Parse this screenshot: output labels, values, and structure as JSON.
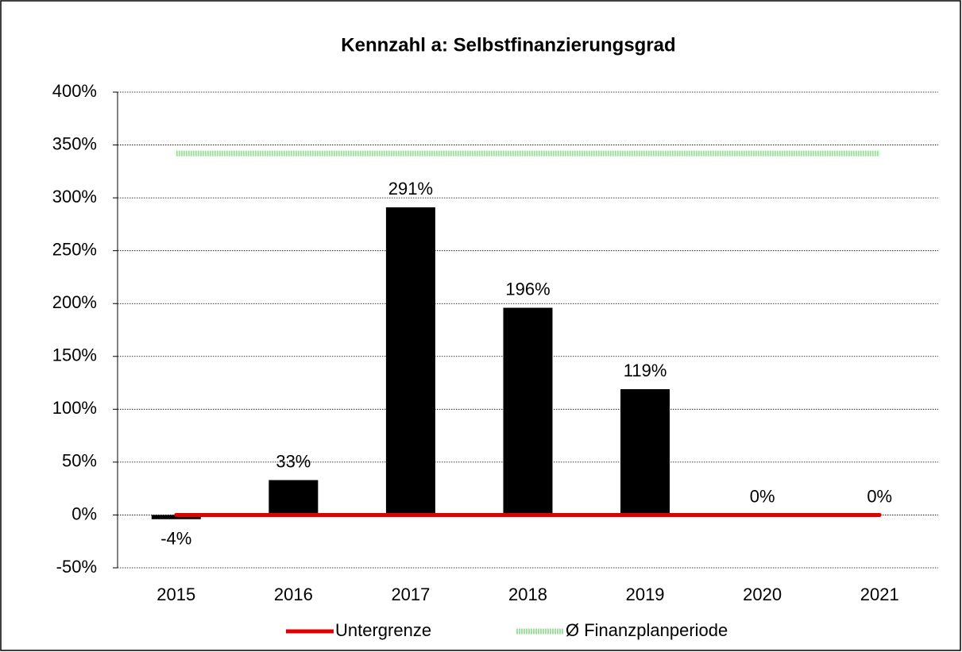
{
  "chart_data": {
    "type": "bar",
    "title": "Kennzahl a: Selbstfinanzierungsgrad",
    "categories": [
      "2015",
      "2016",
      "2017",
      "2018",
      "2019",
      "2020",
      "2021"
    ],
    "series": [
      {
        "type": "bar",
        "color": "#000000",
        "values": [
          -4,
          33,
          291,
          196,
          119,
          0,
          0
        ],
        "value_labels": [
          "-4%",
          "33%",
          "291%",
          "196%",
          "119%",
          "0%",
          "0%"
        ]
      },
      {
        "name": "Untergrenze",
        "type": "line",
        "color": "#e00000",
        "values": [
          0,
          0,
          0,
          0,
          0,
          0,
          0
        ]
      },
      {
        "name": "Ø Finanzplanperiode",
        "type": "line",
        "color": "#9ee09e",
        "values": [
          342,
          342,
          342,
          342,
          342,
          342,
          342
        ]
      }
    ],
    "ylim": [
      -50,
      400
    ],
    "yticks": [
      {
        "value": -50,
        "label": "-50%"
      },
      {
        "value": 0,
        "label": "0%"
      },
      {
        "value": 50,
        "label": "50%"
      },
      {
        "value": 100,
        "label": "100%"
      },
      {
        "value": 150,
        "label": "150%"
      },
      {
        "value": 200,
        "label": "200%"
      },
      {
        "value": 250,
        "label": "250%"
      },
      {
        "value": 300,
        "label": "300%"
      },
      {
        "value": 350,
        "label": "350%"
      },
      {
        "value": 400,
        "label": "400%"
      }
    ],
    "grid": true,
    "legend": "bottom"
  }
}
